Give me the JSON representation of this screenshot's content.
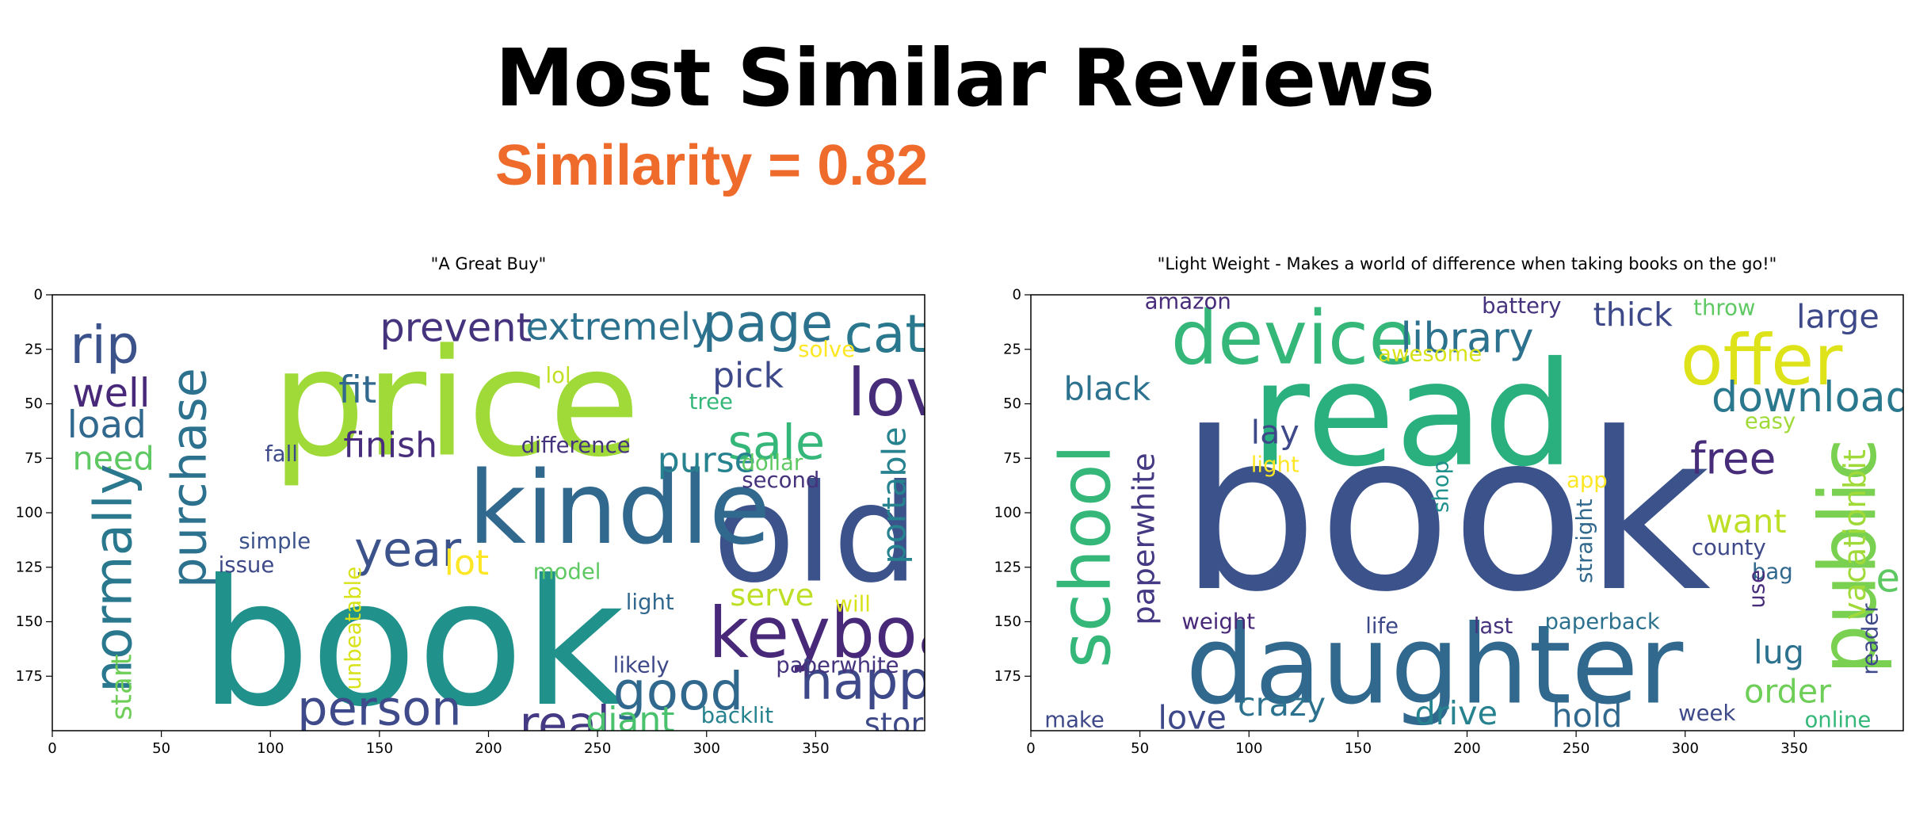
{
  "header": {
    "title": "Most Similar Reviews",
    "subtitle": "Similarity = 0.82"
  },
  "chart_data": [
    {
      "type": "wordcloud",
      "title": "\"A Great Buy\"",
      "xlim": [
        0,
        400
      ],
      "ylim": [
        200,
        0
      ],
      "xticks": [
        0,
        50,
        100,
        150,
        200,
        250,
        300,
        350
      ],
      "yticks": [
        0,
        25,
        50,
        75,
        100,
        125,
        150,
        175
      ],
      "words": [
        {
          "text": "book",
          "x": 165,
          "y": 160,
          "size": 80,
          "color": "#21918c"
        },
        {
          "text": "price",
          "x": 185,
          "y": 50,
          "size": 68,
          "color": "#a0da39"
        },
        {
          "text": "old",
          "x": 350,
          "y": 110,
          "size": 62,
          "color": "#3b528b"
        },
        {
          "text": "kindle",
          "x": 260,
          "y": 98,
          "size": 46,
          "color": "#31688e"
        },
        {
          "text": "keyboard",
          "x": 375,
          "y": 155,
          "size": 32,
          "color": "#482878"
        },
        {
          "text": "love",
          "x": 396,
          "y": 45,
          "size": 30,
          "color": "#472c7a"
        },
        {
          "text": "catch",
          "x": 396,
          "y": 18,
          "size": 24,
          "color": "#2a788e"
        },
        {
          "text": "page",
          "x": 328,
          "y": 13,
          "size": 24,
          "color": "#2c728e"
        },
        {
          "text": "sale",
          "x": 332,
          "y": 68,
          "size": 22,
          "color": "#35b779"
        },
        {
          "text": "happy",
          "x": 380,
          "y": 177,
          "size": 24,
          "color": "#3e4989"
        },
        {
          "text": "good",
          "x": 287,
          "y": 182,
          "size": 24,
          "color": "#31688e"
        },
        {
          "text": "person",
          "x": 150,
          "y": 190,
          "size": 22,
          "color": "#3e4a89"
        },
        {
          "text": "real",
          "x": 235,
          "y": 197,
          "size": 22,
          "color": "#443983"
        },
        {
          "text": "giant",
          "x": 265,
          "y": 195,
          "size": 16,
          "color": "#4ac16d"
        },
        {
          "text": "store",
          "x": 390,
          "y": 197,
          "size": 14,
          "color": "#3e4989"
        },
        {
          "text": "year",
          "x": 163,
          "y": 117,
          "size": 22,
          "color": "#3b528b"
        },
        {
          "text": "lot",
          "x": 190,
          "y": 123,
          "size": 16,
          "color": "#fde725"
        },
        {
          "text": "prevent",
          "x": 185,
          "y": 15,
          "size": 18,
          "color": "#46337e"
        },
        {
          "text": "extremely",
          "x": 260,
          "y": 15,
          "size": 17,
          "color": "#2c728e"
        },
        {
          "text": "rip",
          "x": 24,
          "y": 23,
          "size": 24,
          "color": "#3b528b"
        },
        {
          "text": "well",
          "x": 27,
          "y": 45,
          "size": 18,
          "color": "#482878"
        },
        {
          "text": "load",
          "x": 25,
          "y": 60,
          "size": 17,
          "color": "#31688e"
        },
        {
          "text": "need",
          "x": 28,
          "y": 75,
          "size": 15,
          "color": "#5ec962"
        },
        {
          "text": "fit",
          "x": 140,
          "y": 44,
          "size": 17,
          "color": "#31688e"
        },
        {
          "text": "finish",
          "x": 155,
          "y": 69,
          "size": 16,
          "color": "#472d7b"
        },
        {
          "text": "fall",
          "x": 105,
          "y": 73,
          "size": 10,
          "color": "#3e4989"
        },
        {
          "text": "pick",
          "x": 319,
          "y": 37,
          "size": 16,
          "color": "#3e4989"
        },
        {
          "text": "purse",
          "x": 300,
          "y": 76,
          "size": 16,
          "color": "#26828e"
        },
        {
          "text": "dollar",
          "x": 330,
          "y": 77,
          "size": 10,
          "color": "#5ec962"
        },
        {
          "text": "second",
          "x": 334,
          "y": 85,
          "size": 10,
          "color": "#46337e"
        },
        {
          "text": "difference",
          "x": 240,
          "y": 69,
          "size": 10,
          "color": "#46337e"
        },
        {
          "text": "lol",
          "x": 232,
          "y": 37,
          "size": 10,
          "color": "#c2df23"
        },
        {
          "text": "tree",
          "x": 302,
          "y": 49,
          "size": 10,
          "color": "#35b779"
        },
        {
          "text": "solve",
          "x": 355,
          "y": 25,
          "size": 10,
          "color": "#fde725"
        },
        {
          "text": "serve",
          "x": 330,
          "y": 138,
          "size": 14,
          "color": "#bddf26"
        },
        {
          "text": "will",
          "x": 367,
          "y": 142,
          "size": 10,
          "color": "#d8e219"
        },
        {
          "text": "light",
          "x": 274,
          "y": 141,
          "size": 10,
          "color": "#31688e"
        },
        {
          "text": "model",
          "x": 236,
          "y": 127,
          "size": 10,
          "color": "#5ec962"
        },
        {
          "text": "likely",
          "x": 270,
          "y": 170,
          "size": 10,
          "color": "#3e4989"
        },
        {
          "text": "paperwhite",
          "x": 360,
          "y": 170,
          "size": 10,
          "color": "#46337e"
        },
        {
          "text": "backlit",
          "x": 314,
          "y": 193,
          "size": 10,
          "color": "#26828e"
        },
        {
          "text": "simple",
          "x": 102,
          "y": 113,
          "size": 10,
          "color": "#3b528b"
        },
        {
          "text": "issue",
          "x": 89,
          "y": 124,
          "size": 10,
          "color": "#3e4989"
        },
        {
          "text": "normally",
          "x": 28,
          "y": 130,
          "size": 24,
          "color": "#2a788e",
          "rotate": -90
        },
        {
          "text": "purchase",
          "x": 63,
          "y": 84,
          "size": 22,
          "color": "#2c728e",
          "rotate": -90
        },
        {
          "text": "portable",
          "x": 386,
          "y": 92,
          "size": 15,
          "color": "#26828e",
          "rotate": -90
        },
        {
          "text": "start",
          "x": 32,
          "y": 180,
          "size": 13,
          "color": "#6ece58",
          "rotate": -90
        },
        {
          "text": "unbeatable",
          "x": 138,
          "y": 153,
          "size": 10,
          "color": "#d8e219",
          "rotate": -90
        }
      ]
    },
    {
      "type": "wordcloud",
      "title": "\"Light Weight - Makes a world of difference when taking books on the go!\"",
      "xlim": [
        0,
        400
      ],
      "ylim": [
        200,
        0
      ],
      "xticks": [
        0,
        50,
        100,
        150,
        200,
        250,
        300,
        350
      ],
      "yticks": [
        0,
        25,
        50,
        75,
        100,
        125,
        150,
        175
      ],
      "words": [
        {
          "text": "book",
          "x": 190,
          "y": 100,
          "size": 100,
          "color": "#3b528b"
        },
        {
          "text": "read",
          "x": 175,
          "y": 55,
          "size": 66,
          "color": "#2ab07f"
        },
        {
          "text": "daughter",
          "x": 185,
          "y": 170,
          "size": 50,
          "color": "#31688e"
        },
        {
          "text": "device",
          "x": 120,
          "y": 20,
          "size": 34,
          "color": "#35b779"
        },
        {
          "text": "offer",
          "x": 335,
          "y": 30,
          "size": 32,
          "color": "#dde318"
        },
        {
          "text": "library",
          "x": 200,
          "y": 20,
          "size": 19,
          "color": "#2c728e"
        },
        {
          "text": "thick",
          "x": 276,
          "y": 9,
          "size": 15,
          "color": "#3e4989"
        },
        {
          "text": "throw",
          "x": 318,
          "y": 6,
          "size": 10,
          "color": "#5ec962"
        },
        {
          "text": "large",
          "x": 370,
          "y": 10,
          "size": 15,
          "color": "#3e4989"
        },
        {
          "text": "battery",
          "x": 225,
          "y": 5,
          "size": 10,
          "color": "#46337e"
        },
        {
          "text": "amazon",
          "x": 72,
          "y": 3,
          "size": 10,
          "color": "#472c7a"
        },
        {
          "text": "awesome",
          "x": 183,
          "y": 27,
          "size": 10,
          "color": "#d8e219"
        },
        {
          "text": "black",
          "x": 35,
          "y": 43,
          "size": 15,
          "color": "#2c728e"
        },
        {
          "text": "download",
          "x": 358,
          "y": 47,
          "size": 19,
          "color": "#2a788e"
        },
        {
          "text": "lay",
          "x": 112,
          "y": 63,
          "size": 15,
          "color": "#3e4989"
        },
        {
          "text": "light",
          "x": 112,
          "y": 78,
          "size": 10,
          "color": "#fde725"
        },
        {
          "text": "easy",
          "x": 339,
          "y": 58,
          "size": 10,
          "color": "#a0da39"
        },
        {
          "text": "free",
          "x": 322,
          "y": 75,
          "size": 20,
          "color": "#472c7a"
        },
        {
          "text": "app",
          "x": 255,
          "y": 85,
          "size": 10,
          "color": "#fde725"
        },
        {
          "text": "want",
          "x": 328,
          "y": 104,
          "size": 15,
          "color": "#bddf26"
        },
        {
          "text": "county",
          "x": 320,
          "y": 116,
          "size": 10,
          "color": "#3e4989"
        },
        {
          "text": "bag",
          "x": 340,
          "y": 127,
          "size": 10,
          "color": "#31688e"
        },
        {
          "text": "weight",
          "x": 86,
          "y": 150,
          "size": 10,
          "color": "#482878"
        },
        {
          "text": "life",
          "x": 161,
          "y": 152,
          "size": 10,
          "color": "#3e4989"
        },
        {
          "text": "last",
          "x": 212,
          "y": 152,
          "size": 10,
          "color": "#46337e"
        },
        {
          "text": "paperback",
          "x": 262,
          "y": 150,
          "size": 10,
          "color": "#2c728e"
        },
        {
          "text": "lug",
          "x": 343,
          "y": 164,
          "size": 15,
          "color": "#2c728e"
        },
        {
          "text": "order",
          "x": 347,
          "y": 182,
          "size": 15,
          "color": "#6ece58"
        },
        {
          "text": "love",
          "x": 74,
          "y": 194,
          "size": 15,
          "color": "#3e4989"
        },
        {
          "text": "crazy",
          "x": 115,
          "y": 188,
          "size": 15,
          "color": "#2c728e"
        },
        {
          "text": "drive",
          "x": 195,
          "y": 192,
          "size": 15,
          "color": "#26828e"
        },
        {
          "text": "hold",
          "x": 255,
          "y": 193,
          "size": 15,
          "color": "#31688e"
        },
        {
          "text": "make",
          "x": 20,
          "y": 195,
          "size": 10,
          "color": "#3e4989"
        },
        {
          "text": "week",
          "x": 310,
          "y": 192,
          "size": 10,
          "color": "#3e4989"
        },
        {
          "text": "online",
          "x": 370,
          "y": 195,
          "size": 10,
          "color": "#35b779"
        },
        {
          "text": "school",
          "x": 25,
          "y": 120,
          "size": 32,
          "color": "#35b779",
          "rotate": -90
        },
        {
          "text": "paperwhite",
          "x": 52,
          "y": 112,
          "size": 14,
          "color": "#443983",
          "rotate": -90
        },
        {
          "text": "public",
          "x": 375,
          "y": 120,
          "size": 36,
          "color": "#7ad151",
          "rotate": -90
        },
        {
          "text": "vacationbit",
          "x": 378,
          "y": 110,
          "size": 14,
          "color": "#a0da39",
          "rotate": -90
        },
        {
          "text": "e",
          "x": 393,
          "y": 130,
          "size": 18,
          "color": "#5ec962"
        },
        {
          "text": "reader",
          "x": 385,
          "y": 158,
          "size": 10,
          "color": "#3e4989",
          "rotate": -90
        },
        {
          "text": "shop",
          "x": 188,
          "y": 88,
          "size": 10,
          "color": "#21918c",
          "rotate": -90
        },
        {
          "text": "straight",
          "x": 254,
          "y": 113,
          "size": 10,
          "color": "#31688e",
          "rotate": -90
        },
        {
          "text": "use",
          "x": 333,
          "y": 135,
          "size": 10,
          "color": "#472c7a",
          "rotate": -90
        }
      ]
    }
  ]
}
